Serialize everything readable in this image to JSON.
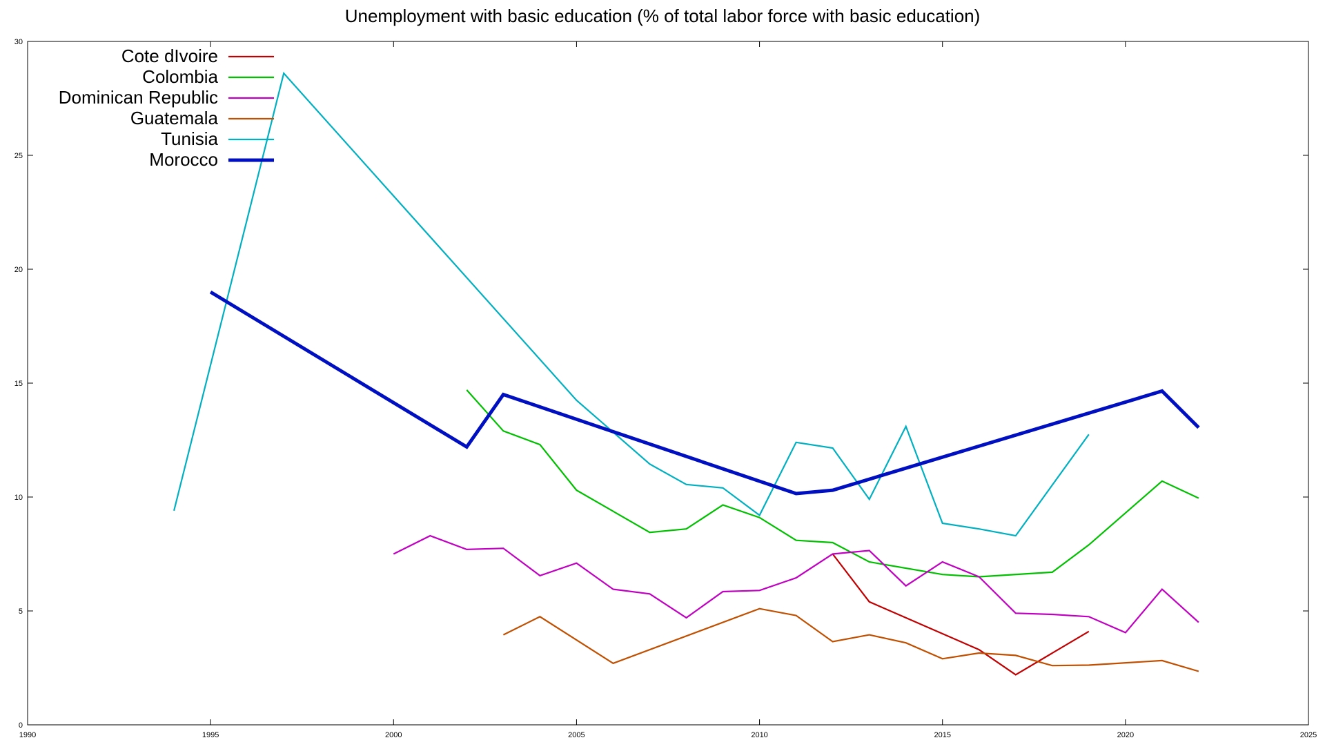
{
  "chart_data": {
    "type": "line",
    "title": "Unemployment with basic education (% of total labor force with basic education)",
    "xlabel": "",
    "ylabel": "",
    "xlim": [
      1990,
      2025
    ],
    "ylim": [
      0,
      30
    ],
    "x_ticks": [
      1990,
      1995,
      2000,
      2005,
      2010,
      2015,
      2020,
      2025
    ],
    "y_ticks": [
      0,
      5,
      10,
      15,
      20,
      25,
      30
    ],
    "grid": false,
    "legend_position": "top-left",
    "series": [
      {
        "name": "Cote dIvoire",
        "color": "#c00000",
        "width": "normal",
        "points": [
          [
            2012,
            7.5
          ],
          [
            2013,
            5.4
          ],
          [
            2016,
            3.3
          ],
          [
            2017,
            2.2
          ],
          [
            2019,
            4.1
          ]
        ]
      },
      {
        "name": "Colombia",
        "color": "#00c000",
        "width": "normal",
        "points": [
          [
            2002,
            14.7
          ],
          [
            2003,
            12.9
          ],
          [
            2004,
            12.3
          ],
          [
            2005,
            10.3
          ],
          [
            2007,
            8.45
          ],
          [
            2008,
            8.6
          ],
          [
            2009,
            9.65
          ],
          [
            2010,
            9.1
          ],
          [
            2011,
            8.1
          ],
          [
            2012,
            8.0
          ],
          [
            2013,
            7.15
          ],
          [
            2015,
            6.6
          ],
          [
            2016,
            6.5
          ],
          [
            2018,
            6.7
          ],
          [
            2019,
            7.9
          ],
          [
            2021,
            10.7
          ],
          [
            2022,
            9.95
          ]
        ]
      },
      {
        "name": "Dominican Republic",
        "color": "#c000c0",
        "width": "normal",
        "points": [
          [
            2000,
            7.5
          ],
          [
            2001,
            8.3
          ],
          [
            2002,
            7.7
          ],
          [
            2003,
            7.75
          ],
          [
            2004,
            6.55
          ],
          [
            2005,
            7.1
          ],
          [
            2006,
            5.95
          ],
          [
            2007,
            5.75
          ],
          [
            2008,
            4.7
          ],
          [
            2009,
            5.85
          ],
          [
            2010,
            5.9
          ],
          [
            2011,
            6.45
          ],
          [
            2012,
            7.5
          ],
          [
            2013,
            7.65
          ],
          [
            2014,
            6.1
          ],
          [
            2015,
            7.15
          ],
          [
            2016,
            6.5
          ],
          [
            2017,
            4.9
          ],
          [
            2018,
            4.85
          ],
          [
            2019,
            4.75
          ],
          [
            2020,
            4.05
          ],
          [
            2021,
            5.95
          ],
          [
            2022,
            4.5
          ]
        ]
      },
      {
        "name": "Guatemala",
        "color": "#c04f00",
        "width": "normal",
        "points": [
          [
            2003,
            3.95
          ],
          [
            2004,
            4.75
          ],
          [
            2006,
            2.7
          ],
          [
            2010,
            5.1
          ],
          [
            2011,
            4.8
          ],
          [
            2012,
            3.65
          ],
          [
            2013,
            3.95
          ],
          [
            2014,
            3.6
          ],
          [
            2015,
            2.9
          ],
          [
            2016,
            3.15
          ],
          [
            2017,
            3.05
          ],
          [
            2018,
            2.6
          ],
          [
            2019,
            2.62
          ],
          [
            2021,
            2.82
          ],
          [
            2022,
            2.35
          ]
        ]
      },
      {
        "name": "Tunisia",
        "color": "#00b0c0",
        "width": "normal",
        "points": [
          [
            1994,
            9.4
          ],
          [
            1997,
            28.6
          ],
          [
            2005,
            14.25
          ],
          [
            2007,
            11.45
          ],
          [
            2008,
            10.55
          ],
          [
            2009,
            10.4
          ],
          [
            2010,
            9.2
          ],
          [
            2011,
            12.4
          ],
          [
            2012,
            12.15
          ],
          [
            2013,
            9.9
          ],
          [
            2014,
            13.1
          ],
          [
            2015,
            8.85
          ],
          [
            2016,
            8.6
          ],
          [
            2017,
            8.3
          ],
          [
            2019,
            12.75
          ]
        ]
      },
      {
        "name": "Morocco",
        "color": "#0010c0",
        "width": "thick",
        "points": [
          [
            1995,
            19.0
          ],
          [
            2002,
            12.2
          ],
          [
            2003,
            14.5
          ],
          [
            2011,
            10.15
          ],
          [
            2012,
            10.3
          ],
          [
            2021,
            14.65
          ],
          [
            2022,
            13.05
          ]
        ]
      }
    ]
  }
}
